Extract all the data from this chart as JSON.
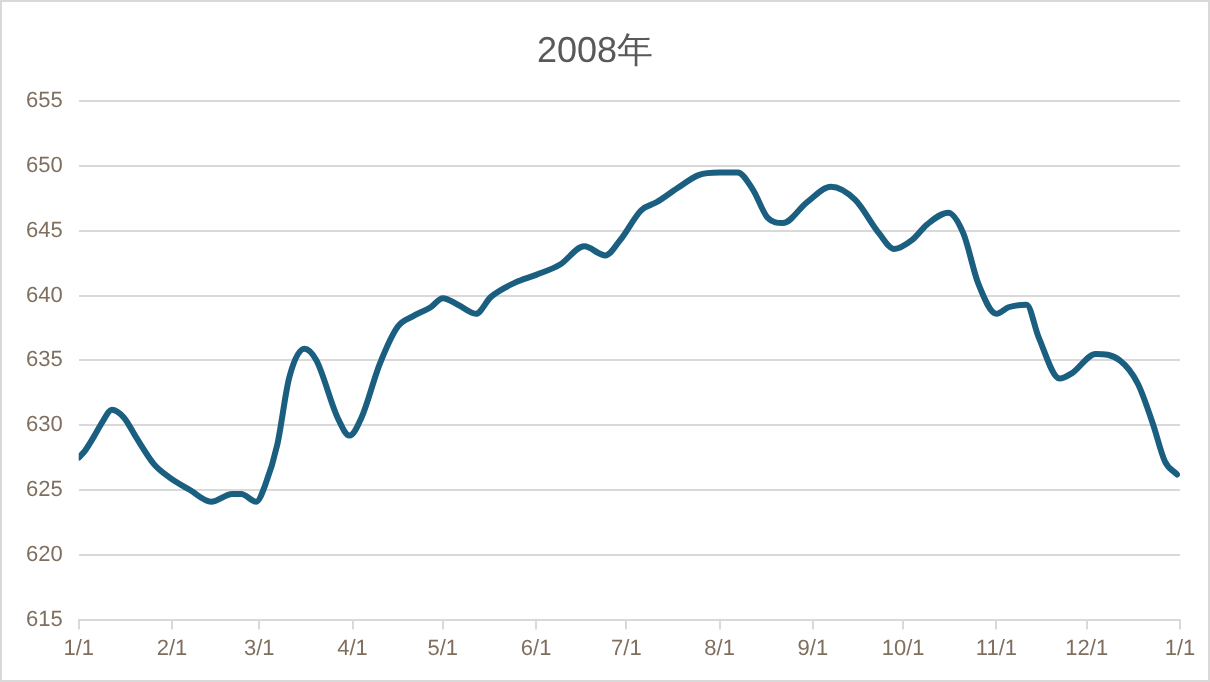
{
  "chart_data": {
    "type": "line",
    "title": "2008年",
    "x": [
      "2008-01-01",
      "2008-01-03",
      "2008-01-06",
      "2008-01-09",
      "2008-01-12",
      "2008-01-16",
      "2008-01-20",
      "2008-01-26",
      "2008-01-31",
      "2008-02-07",
      "2008-02-14",
      "2008-02-21",
      "2008-02-24",
      "2008-02-29",
      "2008-03-03",
      "2008-03-07",
      "2008-03-11",
      "2008-03-16",
      "2008-03-20",
      "2008-03-27",
      "2008-03-31",
      "2008-04-04",
      "2008-04-10",
      "2008-04-16",
      "2008-04-21",
      "2008-04-27",
      "2008-05-01",
      "2008-05-06",
      "2008-05-12",
      "2008-05-17",
      "2008-05-25",
      "2008-06-01",
      "2008-06-09",
      "2008-06-17",
      "2008-06-24",
      "2008-06-29",
      "2008-07-06",
      "2008-07-11",
      "2008-07-18",
      "2008-07-25",
      "2008-08-01",
      "2008-08-07",
      "2008-08-12",
      "2008-08-17",
      "2008-08-22",
      "2008-08-30",
      "2008-09-07",
      "2008-09-15",
      "2008-09-23",
      "2008-09-28",
      "2008-10-04",
      "2008-10-09",
      "2008-10-16",
      "2008-10-21",
      "2008-10-26",
      "2008-11-01",
      "2008-11-05",
      "2008-11-11",
      "2008-11-15",
      "2008-11-22",
      "2008-11-26",
      "2008-12-04",
      "2008-12-12",
      "2008-12-18",
      "2008-12-23",
      "2008-12-27",
      "2008-12-31"
    ],
    "series": [
      {
        "color": "#1a5e80",
        "values": [
          627.5,
          628.0,
          629.1,
          630.3,
          631.2,
          630.6,
          629.1,
          627.0,
          626.0,
          625.0,
          624.1,
          624.7,
          624.7,
          624.1,
          625.4,
          628.5,
          633.7,
          635.9,
          635.0,
          630.6,
          629.2,
          630.6,
          634.7,
          637.6,
          638.4,
          639.1,
          639.8,
          639.3,
          638.6,
          639.9,
          641.0,
          641.6,
          642.4,
          643.8,
          643.1,
          644.3,
          646.6,
          647.2,
          648.3,
          649.3,
          649.5,
          649.5,
          648.2,
          646.0,
          645.6,
          647.2,
          648.4,
          647.4,
          644.8,
          643.6,
          644.3,
          645.5,
          646.4,
          644.8,
          640.9,
          638.6,
          639.1,
          639.3,
          636.8,
          633.6,
          634.0,
          635.5,
          635.0,
          633.2,
          630.1,
          627.2,
          626.2
        ]
      }
    ],
    "xlim": [
      "2008-01-01",
      "2009-01-01"
    ],
    "xticks": [
      {
        "value": "2008-01-01",
        "label": "1/1"
      },
      {
        "value": "2008-02-01",
        "label": "2/1"
      },
      {
        "value": "2008-03-01",
        "label": "3/1"
      },
      {
        "value": "2008-04-01",
        "label": "4/1"
      },
      {
        "value": "2008-05-01",
        "label": "5/1"
      },
      {
        "value": "2008-06-01",
        "label": "6/1"
      },
      {
        "value": "2008-07-01",
        "label": "7/1"
      },
      {
        "value": "2008-08-01",
        "label": "8/1"
      },
      {
        "value": "2008-09-01",
        "label": "9/1"
      },
      {
        "value": "2008-10-01",
        "label": "10/1"
      },
      {
        "value": "2008-11-01",
        "label": "11/1"
      },
      {
        "value": "2008-12-01",
        "label": "12/1"
      },
      {
        "value": "2009-01-01",
        "label": "1/1"
      }
    ],
    "ylim": [
      615,
      655
    ],
    "yticks": [
      615,
      620,
      625,
      630,
      635,
      640,
      645,
      650,
      655
    ],
    "grid": "y",
    "legend": false,
    "marker": "none",
    "line_style": "solid"
  }
}
